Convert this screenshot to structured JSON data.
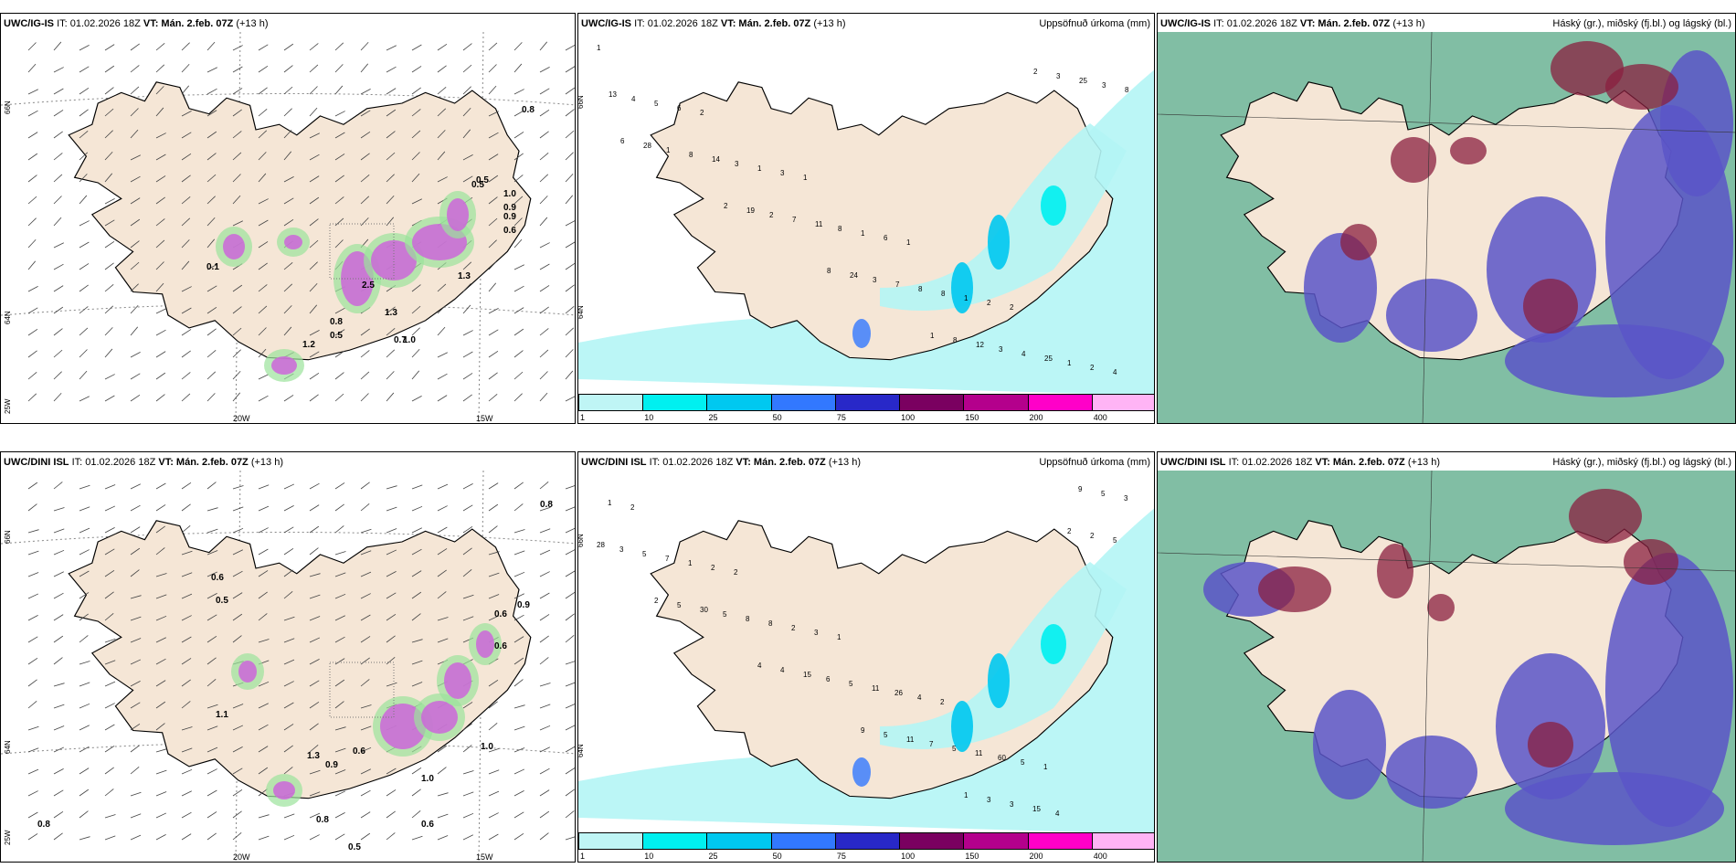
{
  "rows": [
    {
      "model": "UWC/IG-IS",
      "it": "IT: 01.02.2026 18Z",
      "vt_label": "VT:",
      "vt": "Mán. 2.feb. 07Z",
      "lead": "(+13 h)",
      "wind_values": [
        "0.1",
        "2.5",
        "1.3",
        "0.8",
        "0.5",
        "1.0",
        "0.7",
        "0.9",
        "1.2",
        "0.5",
        "1.0",
        "0.9",
        "0.6",
        "0.5",
        "0.8",
        "1.3"
      ],
      "precip_values": [
        "1",
        "2",
        "1",
        "1",
        "2",
        "4",
        "6",
        "3",
        "6",
        "2",
        "2",
        "5",
        "1",
        "1",
        "1",
        "1",
        "4",
        "3",
        "8",
        "8",
        "25",
        "13",
        "14",
        "11",
        "8",
        "4",
        "8",
        "8",
        "7",
        "7",
        "3",
        "3",
        "1",
        "2",
        "3",
        "12",
        "25",
        "28",
        "19",
        "24",
        "8",
        "3",
        "6",
        "2",
        "8",
        "1",
        "2"
      ]
    },
    {
      "model": "UWC/DINI ISL",
      "it": "IT: 01.02.2026 18Z",
      "vt_label": "VT:",
      "vt": "Mán. 2.feb. 07Z",
      "lead": "(+13 h)",
      "wind_values": [
        "0.6",
        "0.5",
        "1.1",
        "1.3",
        "0.9",
        "0.6",
        "1.0",
        "0.6",
        "0.9",
        "0.8",
        "0.6",
        "1.0",
        "0.8",
        "0.5",
        "0.8",
        "0.6"
      ],
      "precip_values": [
        "2",
        "2",
        "1",
        "2",
        "1",
        "1",
        "2",
        "3",
        "4",
        "5",
        "3",
        "1",
        "2",
        "26",
        "60",
        "5",
        "7",
        "8",
        "11",
        "11",
        "9",
        "5",
        "8",
        "5",
        "5",
        "4",
        "3",
        "5",
        "6",
        "7",
        "15",
        "28",
        "30",
        "15",
        "11",
        "3",
        "5",
        "5",
        "4",
        "5",
        "3",
        "2",
        "2",
        "4",
        "9",
        "1",
        "2"
      ]
    }
  ],
  "precip_title": "Uppsöfnuð úrkoma (mm)",
  "cloud_title": "Háský (gr.), miðský (fj.bl.) og lágský (bl.)",
  "axis": {
    "lat_66": "66N",
    "lat_64": "64N",
    "lon_25": "25W",
    "lon_20": "20W",
    "lon_15": "15W"
  },
  "colorbar": {
    "ticks": [
      "1",
      "10",
      "25",
      "50",
      "75",
      "100",
      "150",
      "200",
      "400"
    ],
    "colors": [
      "#bff5f5",
      "#00f0f0",
      "#00c8f0",
      "#3278ff",
      "#2828c8",
      "#7a0060",
      "#b4008c",
      "#ff00c8",
      "#ffb4f5"
    ]
  },
  "colors": {
    "land": "#f5e6d6",
    "sea": "#ffffff",
    "precip_light": "#b4f5f5",
    "wind_magenta": "#cc66d9",
    "cloud_green": "#6bb394",
    "cloud_blue": "#5a55c8",
    "cloud_red": "#8a1f3f"
  }
}
